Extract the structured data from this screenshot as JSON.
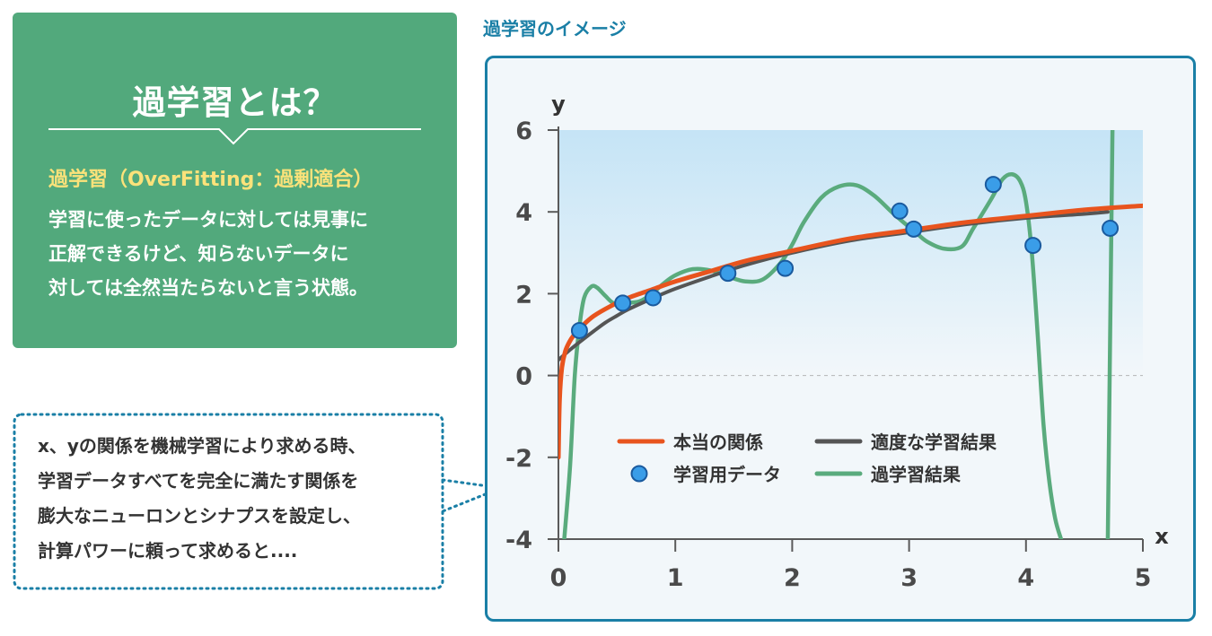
{
  "definition": {
    "title": "過学習とは？",
    "subtitle": "過学習（OverFitting：過剰適合）",
    "body": "学習に使ったデータに対しては見事に\n正解できるけど、知らないデータに\n対しては全然当たらないと言う状態。"
  },
  "note": {
    "text": "x、yの関係を機械学習により求める時、\n学習データすべてを完全に満たす関係を\n膨大なニューロンとシナプスを設定し、\n計算パワーに頼って求めると...."
  },
  "colors": {
    "true_relation": "#e8541e",
    "good_fit": "#555555",
    "overfit": "#5aab7d",
    "data_points": "#3a9de8",
    "accent": "#1a7fa6",
    "panel": "#52a97c"
  },
  "chart_data": {
    "type": "line",
    "title": "過学習のイメージ",
    "xlabel": "x",
    "ylabel": "y",
    "xlim": [
      0,
      5
    ],
    "ylim": [
      -4,
      6
    ],
    "xticks": [
      "0",
      "1",
      "2",
      "3",
      "4",
      "5"
    ],
    "yticks": [
      "6",
      "4",
      "2",
      "0",
      "-2",
      "-4"
    ],
    "reference_line_y": 0,
    "legend_position": "lower-center",
    "legend": [
      {
        "label": "本当の関係",
        "kind": "line",
        "series": "true"
      },
      {
        "label": "適度な学習結果",
        "kind": "line",
        "series": "good"
      },
      {
        "label": "学習用データ",
        "kind": "marker",
        "series": "points"
      },
      {
        "label": "過学習結果",
        "kind": "line",
        "series": "over"
      }
    ],
    "series": [
      {
        "name": "本当の関係",
        "key": "true",
        "x": [
          0.0,
          0.01,
          0.03,
          0.06,
          0.1,
          0.15,
          0.2,
          0.3,
          0.45,
          0.6,
          0.8,
          1.0,
          1.3,
          1.6,
          2.0,
          2.5,
          3.0,
          3.5,
          4.0,
          4.5,
          5.0
        ],
        "y": [
          -2.0,
          -0.6,
          0.2,
          0.6,
          0.85,
          1.05,
          1.2,
          1.45,
          1.7,
          1.9,
          2.1,
          2.3,
          2.55,
          2.8,
          3.05,
          3.35,
          3.55,
          3.75,
          3.9,
          4.05,
          4.15
        ]
      },
      {
        "name": "適度な学習結果",
        "key": "good",
        "x": [
          0.0,
          0.1,
          0.2,
          0.3,
          0.4,
          0.5,
          0.6,
          0.8,
          1.0,
          1.3,
          1.6,
          2.0,
          2.5,
          3.0,
          3.5,
          4.0,
          4.5,
          4.7
        ],
        "y": [
          0.38,
          0.63,
          0.86,
          1.08,
          1.29,
          1.46,
          1.62,
          1.88,
          2.12,
          2.42,
          2.7,
          3.0,
          3.3,
          3.5,
          3.7,
          3.85,
          3.95,
          4.0
        ]
      },
      {
        "name": "過学習結果",
        "key": "over",
        "x": [
          0.05,
          0.1,
          0.14,
          0.18,
          0.22,
          0.28,
          0.33,
          0.4,
          0.47,
          0.55,
          0.62,
          0.7,
          0.8,
          0.9,
          1.0,
          1.15,
          1.3,
          1.45,
          1.6,
          1.75,
          1.9,
          2.0,
          2.1,
          2.25,
          2.4,
          2.55,
          2.7,
          2.85,
          2.95,
          3.05,
          3.15,
          3.3,
          3.45,
          3.55,
          3.7,
          3.8,
          3.88,
          3.95,
          4.0,
          4.05,
          4.1,
          4.15,
          4.2,
          4.25,
          4.3
        ],
        "y": [
          -4.0,
          -2.2,
          0.0,
          1.2,
          1.9,
          2.17,
          2.15,
          1.95,
          1.77,
          1.75,
          1.78,
          1.82,
          2.0,
          2.25,
          2.45,
          2.6,
          2.57,
          2.42,
          2.3,
          2.35,
          2.75,
          3.2,
          3.75,
          4.35,
          4.62,
          4.65,
          4.4,
          4.0,
          3.75,
          3.52,
          3.28,
          3.1,
          3.15,
          3.6,
          4.3,
          4.8,
          4.92,
          4.75,
          4.25,
          3.0,
          1.0,
          -1.2,
          -2.6,
          -3.5,
          -4.0
        ]
      },
      {
        "name": "過学習結果",
        "key": "over_tail",
        "x": [
          4.7,
          4.72,
          4.74
        ],
        "y": [
          -4.0,
          1.0,
          6.0
        ]
      },
      {
        "name": "学習用データ",
        "key": "points",
        "x": [
          0.18,
          0.55,
          0.81,
          1.45,
          1.94,
          2.92,
          3.04,
          3.72,
          4.06,
          4.72
        ],
        "y": [
          1.1,
          1.77,
          1.9,
          2.5,
          2.62,
          4.02,
          3.58,
          4.67,
          3.18,
          3.6
        ]
      }
    ]
  }
}
